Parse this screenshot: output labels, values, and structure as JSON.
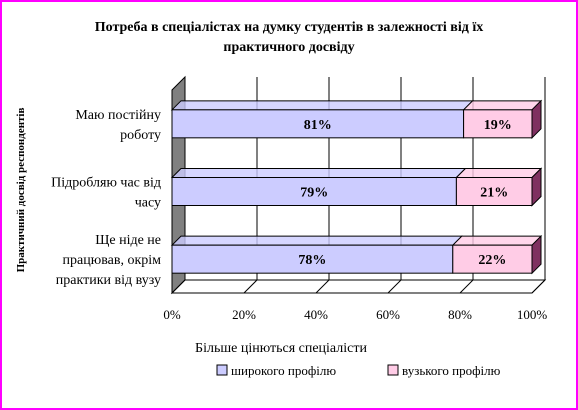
{
  "chart_data": {
    "type": "bar",
    "orientation": "horizontal",
    "stacked": "100%",
    "title_lines": [
      "Потреба в спеціалістах на думку студентів в залежності від їх",
      "практичного досвіду"
    ],
    "xlabel": "Більше цінються спеціалісти",
    "ylabel": "Практичний досвід респондентів",
    "xlim": [
      0,
      100
    ],
    "xticks": [
      "0%",
      "20%",
      "40%",
      "60%",
      "80%",
      "100%"
    ],
    "categories": [
      [
        "Маю постійну",
        "роботу"
      ],
      [
        "Підробляю час від",
        "часу"
      ],
      [
        "Ще ніде не",
        "працював, окрім",
        "практики від вузу"
      ]
    ],
    "series": [
      {
        "name": "широкого профілю",
        "values": [
          81,
          79,
          78
        ],
        "labels": [
          "81%",
          "79%",
          "78%"
        ],
        "color": "#ccccff"
      },
      {
        "name": "вузького профілю",
        "values": [
          19,
          21,
          22
        ],
        "labels": [
          "19%",
          "21%",
          "22%"
        ],
        "color": "#ffcce6"
      }
    ],
    "legend": "bottom",
    "grid": true,
    "three_d": true
  }
}
